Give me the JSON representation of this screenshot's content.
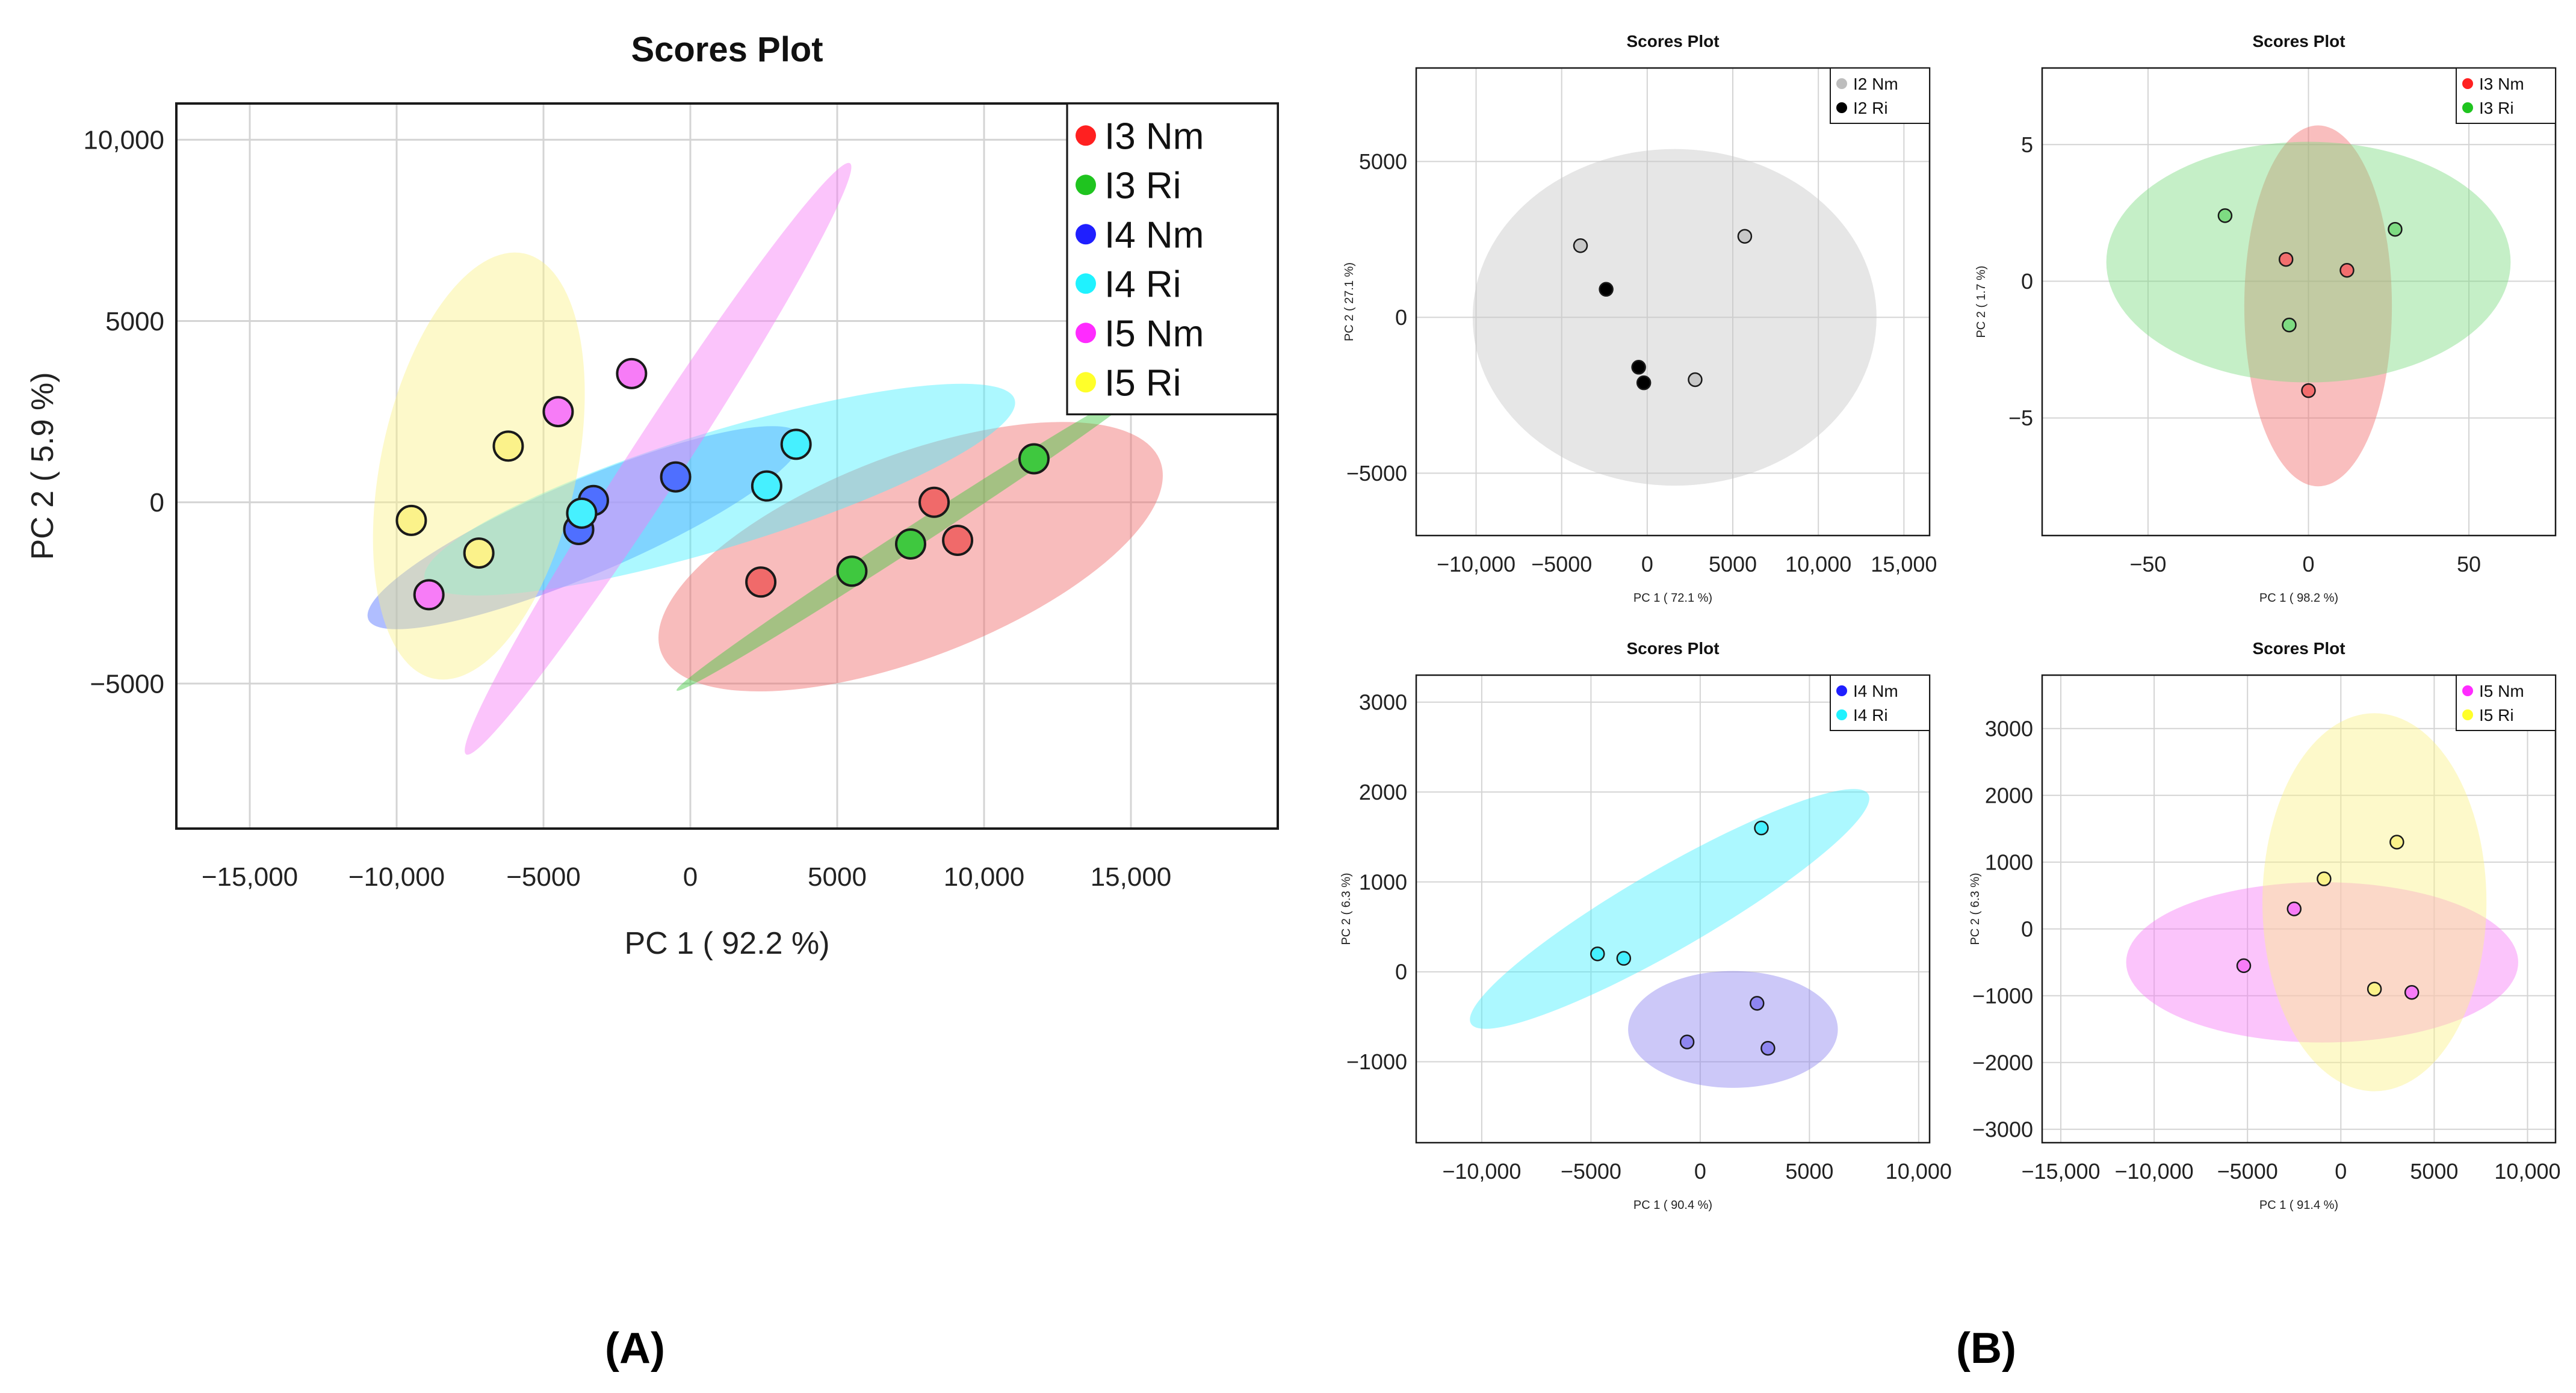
{
  "panel_labels": {
    "a": "(A)",
    "b": "(B)"
  },
  "chart_data": [
    {
      "id": "A",
      "type": "scatter",
      "title": "Scores Plot",
      "xlabel": "PC 1 ( 92.2 %)",
      "ylabel": "PC 2 ( 5.9 %)",
      "xlim": [
        -17500,
        20000
      ],
      "ylim": [
        -9000,
        11000
      ],
      "xticks": [
        -15000,
        -10000,
        -5000,
        0,
        5000,
        10000,
        15000
      ],
      "xticklabels": [
        "−15,000",
        "−10,000",
        "−5000",
        "0",
        "5000",
        "10,000",
        "15,000"
      ],
      "yticks": [
        -5000,
        0,
        5000,
        10000
      ],
      "yticklabels": [
        "−5000",
        "0",
        "5000",
        "10,000"
      ],
      "legend_position": "top-right",
      "series": [
        {
          "name": "I3 Nm",
          "color": "#ff2020",
          "fill": "#f06a6a",
          "points": [
            [
              8300,
              0
            ],
            [
              9100,
              -1050
            ],
            [
              2400,
              -2200
            ]
          ],
          "ellipse": {
            "cx": 7500,
            "cy": -1500,
            "rx": 9100,
            "ry": 2800,
            "angle": 21
          }
        },
        {
          "name": "I3 Ri",
          "color": "#1fc41f",
          "fill": "#3fc83f",
          "points": [
            [
              11700,
              1200
            ],
            [
              7500,
              -1150
            ],
            [
              5500,
              -1900
            ]
          ],
          "ellipse": {
            "cx": 7500,
            "cy": -1000,
            "rx": 9500,
            "ry": 300,
            "angle": 33
          }
        },
        {
          "name": "I4 Nm",
          "color": "#1f1fff",
          "fill": "#4f6fff",
          "points": [
            [
              -500,
              700
            ],
            [
              -3300,
              50
            ],
            [
              -3800,
              -750
            ]
          ],
          "ellipse": {
            "cx": -3600,
            "cy": -700,
            "rx": 8000,
            "ry": 1300,
            "angle": 23
          }
        },
        {
          "name": "I4 Ri",
          "color": "#1ff2ff",
          "fill": "#46f0ff",
          "points": [
            [
              3600,
              1600
            ],
            [
              2600,
              450
            ],
            [
              -3700,
              -300
            ]
          ],
          "ellipse": {
            "cx": 1000,
            "cy": 350,
            "rx": 10500,
            "ry": 1600,
            "angle": 17
          }
        },
        {
          "name": "I5 Nm",
          "color": "#ff2bff",
          "fill": "#f77cf7",
          "points": [
            [
              -2000,
              3550
            ],
            [
              -4500,
              2500
            ],
            [
              -8900,
              -2550
            ]
          ],
          "ellipse": {
            "cx": -1100,
            "cy": 1200,
            "rx": 12000,
            "ry": 750,
            "angle": 57
          }
        },
        {
          "name": "I5 Ri",
          "color": "#ffff2a",
          "fill": "#fbf28a",
          "points": [
            [
              -6200,
              1550
            ],
            [
              -9500,
              -500
            ],
            [
              -7200,
              -1400
            ]
          ],
          "ellipse": {
            "cx": -7200,
            "cy": 1000,
            "rx": 7400,
            "ry": 2700,
            "angle": 78
          }
        }
      ]
    },
    {
      "id": "B1",
      "type": "scatter",
      "title": "Scores Plot",
      "xlabel": "PC 1 ( 72.1 %)",
      "ylabel": "PC 2 ( 27.1 %)",
      "xlim": [
        -13500,
        16500
      ],
      "ylim": [
        -7000,
        8000
      ],
      "xticks": [
        -10000,
        -5000,
        0,
        5000,
        10000,
        15000
      ],
      "xticklabels": [
        "−10,000",
        "−5000",
        "0",
        "5000",
        "10,000",
        "15,000"
      ],
      "yticks": [
        -5000,
        0,
        5000
      ],
      "yticklabels": [
        "−5000",
        "0",
        "5000"
      ],
      "legend_position": "top-right",
      "series": [
        {
          "name": "I2 Nm",
          "color": "#bdbdbd",
          "fill": "#c8c8c8",
          "points": [
            [
              -3900,
              2300
            ],
            [
              5700,
              2600
            ],
            [
              2800,
              -2000
            ]
          ],
          "ellipse": {
            "cx": 1600,
            "cy": 0,
            "rx": 11800,
            "ry": 5400,
            "angle": 0
          }
        },
        {
          "name": "I2 Ri",
          "color": "#000000",
          "fill": null,
          "points": [
            [
              -2400,
              900
            ],
            [
              -500,
              -1600
            ],
            [
              -200,
              -2100
            ]
          ],
          "ellipse": null
        }
      ]
    },
    {
      "id": "B2",
      "type": "scatter",
      "title": "Scores Plot",
      "xlabel": "PC 1 ( 98.2 %)",
      "ylabel": "PC 2 ( 1.7 %)",
      "xlim": [
        -83,
        77
      ],
      "ylim": [
        -9.3,
        7.8
      ],
      "xticks": [
        -50,
        0,
        50
      ],
      "xticklabels": [
        "−50",
        "0",
        "50"
      ],
      "yticks": [
        -5,
        0,
        5
      ],
      "yticklabels": [
        "−5",
        "0",
        "5"
      ],
      "legend_position": "top-right",
      "series": [
        {
          "name": "I3 Nm",
          "color": "#ff2020",
          "fill": "#f26e6e",
          "points": [
            [
              -7,
              0.8
            ],
            [
              12,
              0.4
            ],
            [
              0,
              -4
            ]
          ],
          "ellipse": {
            "cx": 3,
            "cy": -0.9,
            "rx": 23,
            "ry": 6.6,
            "angle": 0
          }
        },
        {
          "name": "I3 Ri",
          "color": "#1fc41f",
          "fill": "#7edb82",
          "points": [
            [
              -26,
              2.4
            ],
            [
              27,
              1.9
            ],
            [
              -6,
              -1.6
            ]
          ],
          "ellipse": {
            "cx": 0,
            "cy": 0.7,
            "rx": 63,
            "ry": 4.4,
            "angle": 0
          }
        }
      ]
    },
    {
      "id": "B3",
      "type": "scatter",
      "title": "Scores Plot",
      "xlabel": "PC 1 ( 90.4 %)",
      "ylabel": "PC 2 ( 6.3 %)",
      "xlim": [
        -13000,
        10500
      ],
      "ylim": [
        -1900,
        3300
      ],
      "xticks": [
        -10000,
        -5000,
        0,
        5000,
        10000
      ],
      "xticklabels": [
        "−10,000",
        "−5000",
        "0",
        "5000",
        "10,000"
      ],
      "yticks": [
        -1000,
        0,
        1000,
        2000,
        3000
      ],
      "yticklabels": [
        "−1000",
        "0",
        "1000",
        "2000",
        "3000"
      ],
      "legend_position": "top-right",
      "series": [
        {
          "name": "I4 Nm",
          "color": "#1f1fff",
          "fill": "#8f86f0",
          "points": [
            [
              2600,
              -350
            ],
            [
              -600,
              -780
            ],
            [
              3100,
              -850
            ]
          ],
          "ellipse": {
            "cx": 1500,
            "cy": -640,
            "rx": 4800,
            "ry": 650,
            "angle": 0
          }
        },
        {
          "name": "I4 Ri",
          "color": "#1ff2ff",
          "fill": "#46f0ff",
          "points": [
            [
              2800,
              1600
            ],
            [
              -4700,
              200
            ],
            [
              -3500,
              150
            ]
          ],
          "ellipse": {
            "cx": -1400,
            "cy": 700,
            "rx": 10500,
            "ry": 450,
            "angle": 30
          }
        }
      ]
    },
    {
      "id": "B4",
      "type": "scatter",
      "title": "Scores Plot",
      "xlabel": "PC 1 ( 91.4 %)",
      "ylabel": "PC 2 ( 6.3 %)",
      "xlim": [
        -16000,
        11500
      ],
      "ylim": [
        -3200,
        3800
      ],
      "xticks": [
        -15000,
        -10000,
        -5000,
        0,
        5000,
        10000
      ],
      "xticklabels": [
        "−15,000",
        "−10,000",
        "−5000",
        "0",
        "5000",
        "10,000"
      ],
      "yticks": [
        -3000,
        -2000,
        -1000,
        0,
        1000,
        2000,
        3000
      ],
      "yticklabels": [
        "−3000",
        "−2000",
        "−1000",
        "0",
        "1000",
        "2000",
        "3000"
      ],
      "legend_position": "top-right",
      "series": [
        {
          "name": "I5 Nm",
          "color": "#ff2bff",
          "fill": "#f77cf7",
          "points": [
            [
              -2500,
              300
            ],
            [
              -5200,
              -550
            ],
            [
              3800,
              -950
            ]
          ],
          "ellipse": {
            "cx": -1000,
            "cy": -500,
            "rx": 10500,
            "ry": 1200,
            "angle": 0
          }
        },
        {
          "name": "I5 Ri",
          "color": "#ffff2a",
          "fill": "#fbf28a",
          "points": [
            [
              3000,
              1300
            ],
            [
              -900,
              750
            ],
            [
              1800,
              -900
            ]
          ],
          "ellipse": {
            "cx": 1800,
            "cy": 400,
            "rx": 6000,
            "ry": 2830,
            "angle": 0
          }
        }
      ]
    }
  ]
}
